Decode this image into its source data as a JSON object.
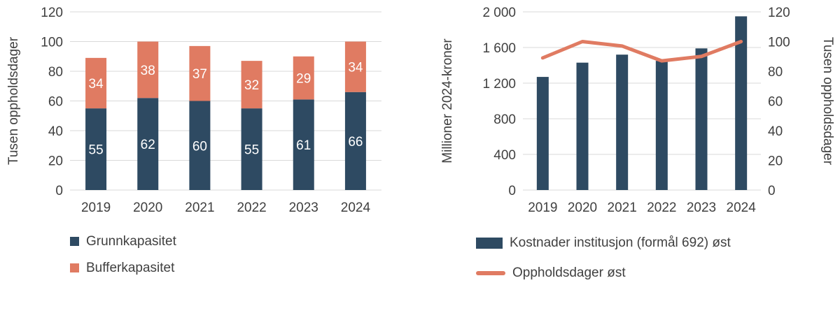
{
  "style": {
    "text_color": "#404040",
    "gridline_color": "#D9D9D9",
    "background": "#FFFFFF",
    "bar_dark_blue": "#2E4A62",
    "accent_salmon": "#E07B62"
  },
  "chart_data": [
    {
      "type": "bar",
      "subtype": "stacked",
      "title": "",
      "ylabel": "Tusen oppholdsdager",
      "xlabel": "",
      "categories": [
        "2019",
        "2020",
        "2021",
        "2022",
        "2023",
        "2024"
      ],
      "series": [
        {
          "name": "Grunnkapasitet",
          "color": "#2E4A62",
          "values": [
            55,
            62,
            60,
            55,
            61,
            66
          ]
        },
        {
          "name": "Bufferkapasitet",
          "color": "#E07B62",
          "values": [
            34,
            38,
            37,
            32,
            29,
            34
          ]
        }
      ],
      "data_labels": true,
      "ylim": [
        0,
        120
      ],
      "ytick_step": 20,
      "grid": true,
      "legend_position": "bottom-left"
    },
    {
      "type": "bar+line",
      "title": "",
      "ylabel_left": "Millioner 2024-kroner",
      "ylabel_right": "Tusen oppholdsdager",
      "xlabel": "",
      "categories": [
        "2019",
        "2020",
        "2021",
        "2022",
        "2023",
        "2024"
      ],
      "bar_series": {
        "name": "Kostnader institusjon (formål 692) øst",
        "color": "#2E4A62",
        "axis": "left",
        "values": [
          1270,
          1430,
          1520,
          1450,
          1590,
          1950
        ]
      },
      "line_series": {
        "name": "Oppholdsdager øst",
        "color": "#E07B62",
        "axis": "right",
        "values": [
          89,
          100,
          97,
          87,
          90,
          100
        ]
      },
      "ylim_left": [
        0,
        2000
      ],
      "ytick_labels_left": [
        "0",
        "400",
        "800",
        "1 200",
        "1 600",
        "2 000"
      ],
      "ylim_right": [
        0,
        120
      ],
      "ytick_step_right": 20,
      "grid": true,
      "legend_position": "bottom-left"
    }
  ]
}
